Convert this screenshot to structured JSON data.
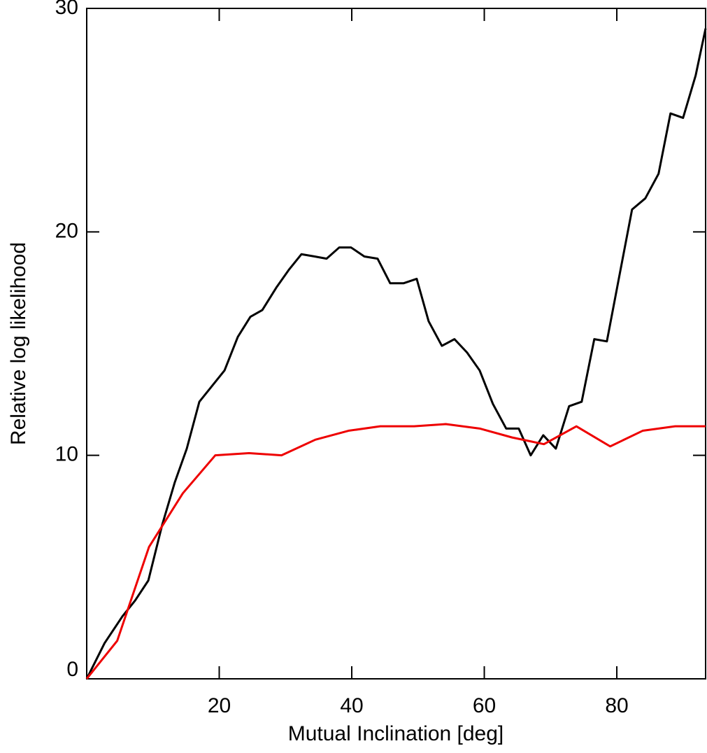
{
  "chart_data": {
    "type": "line",
    "xlabel": "Mutual Inclination [deg]",
    "ylabel": "Relative log likelihood",
    "xlim": [
      0,
      93.4
    ],
    "ylim": [
      0,
      30
    ],
    "xticks": [
      20,
      40,
      60,
      80
    ],
    "yticks": [
      0,
      10,
      20,
      30
    ],
    "series": [
      {
        "color": "#000000",
        "x": [
          0,
          2.7,
          5.4,
          7.3,
          9.3,
          11.4,
          13.3,
          15.1,
          17.0,
          18.9,
          20.8,
          22.8,
          24.7,
          26.5,
          28.6,
          30.5,
          32.4,
          34.4,
          36.2,
          38.1,
          39.9,
          41.9,
          43.9,
          45.8,
          47.8,
          49.8,
          51.6,
          53.6,
          55.5,
          57.4,
          59.3,
          61.3,
          63.3,
          65.2,
          67.0,
          68.9,
          70.8,
          72.8,
          74.7,
          76.6,
          78.5,
          80.3,
          82.3,
          84.3,
          86.3,
          88.1,
          90.0,
          91.9,
          93.4
        ],
        "values": [
          0,
          1.6,
          2.8,
          3.5,
          4.4,
          6.9,
          8.8,
          10.3,
          12.4,
          13.1,
          13.8,
          15.3,
          16.2,
          16.5,
          17.5,
          18.3,
          19.0,
          18.9,
          18.8,
          19.3,
          19.3,
          18.9,
          18.8,
          17.7,
          17.7,
          17.9,
          16.0,
          14.9,
          15.2,
          14.6,
          13.8,
          12.3,
          11.2,
          11.2,
          10.0,
          10.9,
          10.3,
          12.2,
          12.4,
          15.2,
          15.1,
          17.9,
          21.0,
          21.5,
          22.6,
          25.3,
          25.1,
          27.0,
          29.1
        ]
      },
      {
        "color": "#ee0000",
        "x": [
          0,
          4.6,
          9.4,
          14.5,
          19.4,
          24.5,
          29.4,
          34.5,
          39.5,
          44.3,
          49.4,
          54.2,
          59.3,
          64.2,
          69.0,
          73.9,
          79.0,
          83.9,
          88.8,
          93.4
        ],
        "values": [
          0,
          1.7,
          5.9,
          8.3,
          10.0,
          10.1,
          10.0,
          10.7,
          11.1,
          11.3,
          11.3,
          11.4,
          11.2,
          10.8,
          10.5,
          11.3,
          10.4,
          11.1,
          11.3,
          11.3
        ]
      }
    ]
  }
}
